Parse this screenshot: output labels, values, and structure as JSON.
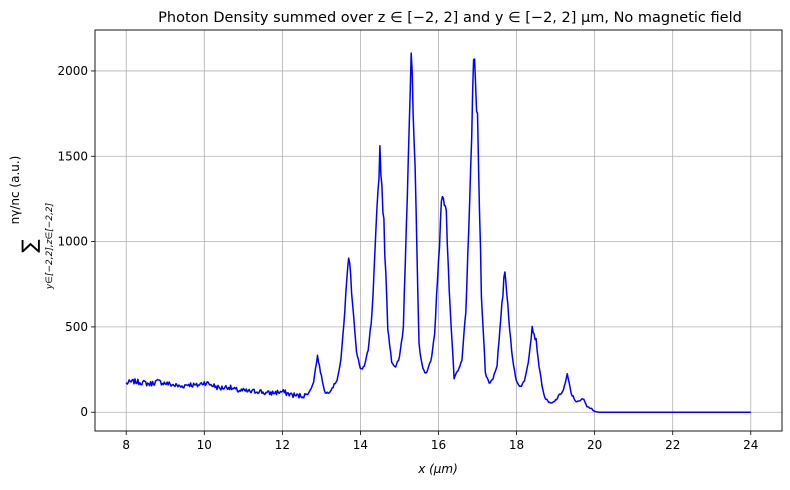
{
  "chart_data": {
    "type": "line",
    "title": "Photon Density summed over z ∈ [−2, 2] and y ∈ [−2, 2] µm, No magnetic field",
    "xlabel": "x (µm)",
    "ylabel_sum": "∑",
    "ylabel_sub": "y∈[−2,2],z∈[−2,2]",
    "ylabel_main": "nγ/nc (a.u.)",
    "xlim": [
      7.2,
      24.8
    ],
    "ylim": [
      -110,
      2240
    ],
    "xticks": [
      8,
      10,
      12,
      14,
      16,
      18,
      20,
      22,
      24
    ],
    "xtick_labels": [
      "8",
      "10",
      "12",
      "14",
      "16",
      "18",
      "20",
      "22",
      "24"
    ],
    "yticks": [
      0,
      500,
      1000,
      1500,
      2000
    ],
    "ytick_labels": [
      "0",
      "500",
      "1000",
      "1500",
      "2000"
    ],
    "grid": true,
    "series": [
      {
        "color": "#0000ff",
        "x": [
          8.0,
          8.2,
          8.4,
          8.6,
          8.8,
          9.0,
          9.2,
          9.4,
          9.6,
          9.8,
          10.0,
          10.2,
          10.4,
          10.6,
          10.8,
          11.0,
          11.2,
          11.4,
          11.6,
          11.8,
          12.0,
          12.2,
          12.4,
          12.6,
          12.7,
          12.8,
          12.9,
          13.0,
          13.1,
          13.2,
          13.3,
          13.4,
          13.5,
          13.6,
          13.7,
          13.8,
          13.9,
          14.0,
          14.1,
          14.2,
          14.3,
          14.4,
          14.5,
          14.6,
          14.7,
          14.8,
          14.9,
          15.0,
          15.1,
          15.2,
          15.3,
          15.4,
          15.5,
          15.6,
          15.7,
          15.8,
          15.9,
          16.0,
          16.1,
          16.2,
          16.3,
          16.4,
          16.5,
          16.6,
          16.7,
          16.8,
          16.9,
          17.0,
          17.1,
          17.2,
          17.3,
          17.4,
          17.5,
          17.6,
          17.7,
          17.8,
          17.9,
          18.0,
          18.1,
          18.2,
          18.3,
          18.4,
          18.5,
          18.6,
          18.7,
          18.8,
          18.9,
          19.0,
          19.1,
          19.2,
          19.3,
          19.4,
          19.5,
          19.6,
          19.7,
          19.8,
          19.9,
          20.0,
          20.1,
          20.2,
          20.4,
          21.0,
          22.0,
          23.0,
          24.0
        ],
        "y": [
          170,
          180,
          175,
          165,
          180,
          170,
          160,
          150,
          165,
          155,
          175,
          160,
          140,
          150,
          130,
          125,
          120,
          125,
          110,
          115,
          120,
          105,
          95,
          100,
          120,
          180,
          330,
          210,
          110,
          120,
          150,
          190,
          300,
          600,
          930,
          650,
          350,
          250,
          270,
          360,
          580,
          1050,
          1540,
          1100,
          500,
          300,
          260,
          320,
          500,
          1300,
          2100,
          1400,
          400,
          250,
          230,
          300,
          450,
          900,
          1300,
          1150,
          600,
          200,
          240,
          300,
          600,
          1200,
          2100,
          1700,
          700,
          230,
          170,
          200,
          280,
          550,
          840,
          560,
          300,
          180,
          150,
          180,
          300,
          500,
          420,
          230,
          100,
          60,
          50,
          70,
          100,
          130,
          220,
          110,
          70,
          60,
          80,
          40,
          20,
          5,
          0,
          0,
          0,
          0,
          0,
          0,
          0
        ]
      }
    ]
  }
}
